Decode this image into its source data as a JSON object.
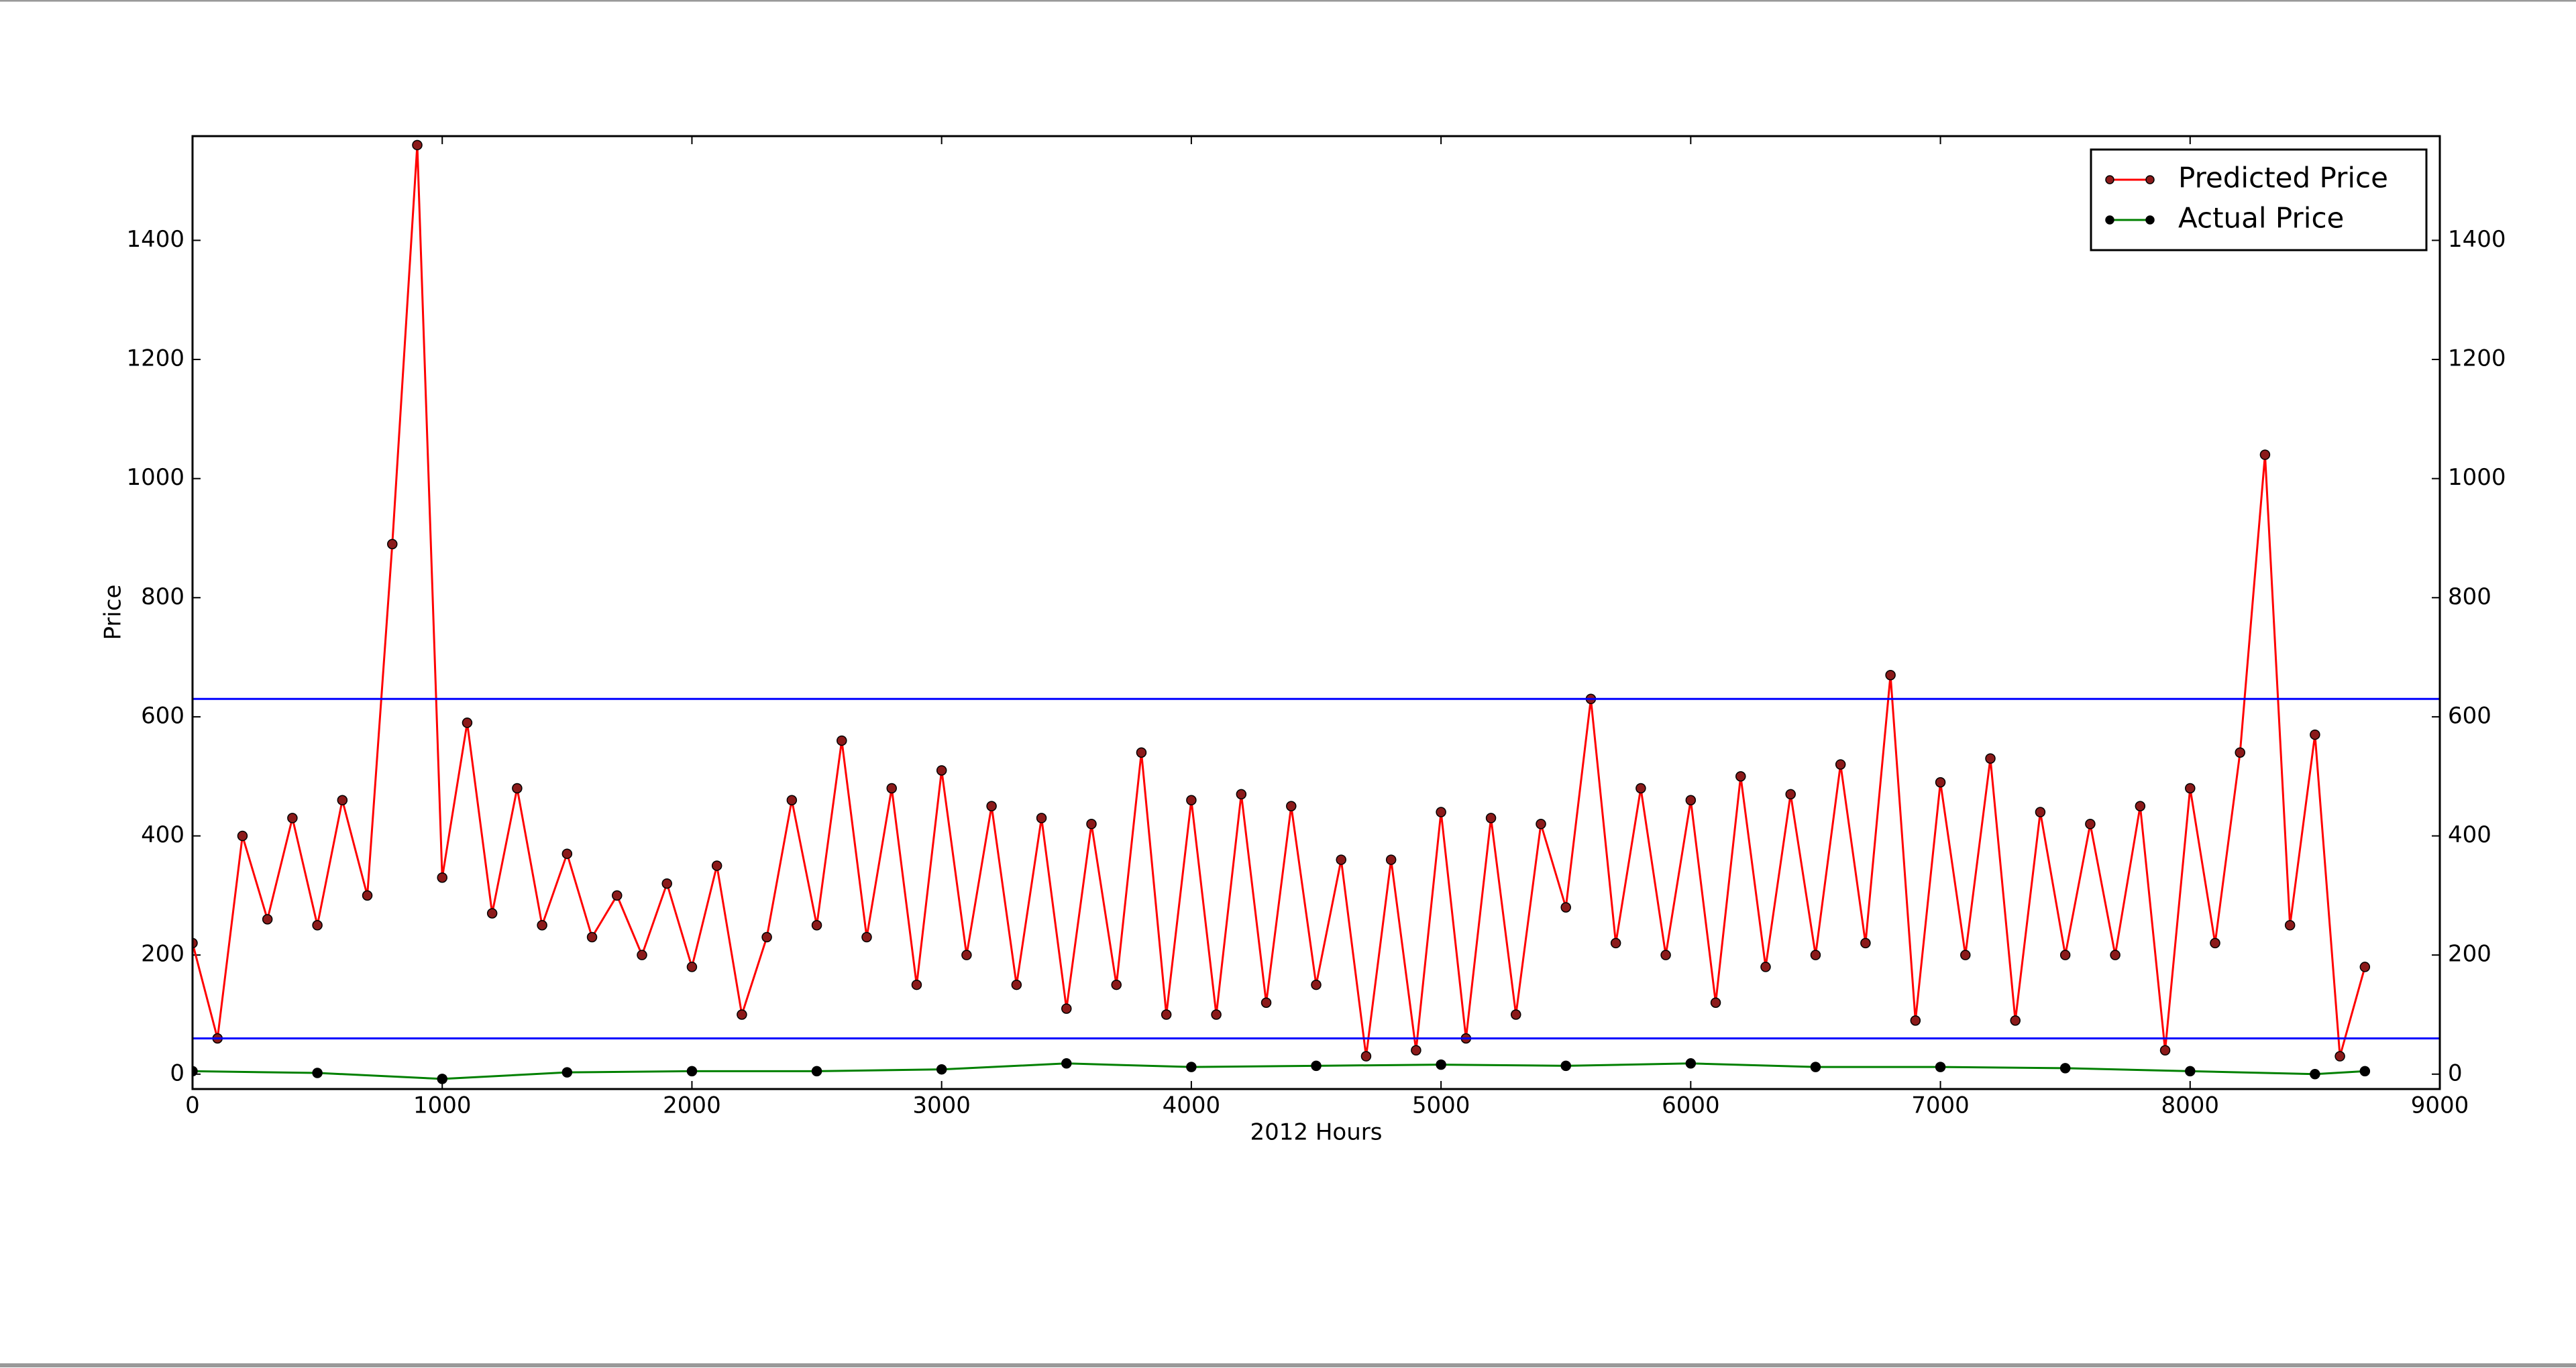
{
  "chart_data": {
    "type": "line",
    "xlabel": "2012 Hours",
    "ylabel": "Price",
    "xlabel_color": "#0000ff",
    "ylabel_color": "#ff0000",
    "xlim": [
      0,
      9000
    ],
    "xticks": [
      0,
      1000,
      2000,
      3000,
      4000,
      5000,
      6000,
      7000,
      8000,
      9000
    ],
    "ylim": [
      -25,
      1575
    ],
    "yticks": [
      0,
      200,
      400,
      600,
      800,
      1000,
      1200,
      1400
    ],
    "y2lim": [
      -25,
      1575
    ],
    "y2ticks": [
      0,
      200,
      400,
      600,
      800,
      1000,
      1200,
      1400
    ],
    "hlines": [
      630,
      60
    ],
    "hline_color": "#0000ff",
    "legend": "upper right",
    "series": [
      {
        "name": "Predicted Price",
        "color": "#ff0000",
        "marker_color": "#8b1a1a",
        "x": [
          0,
          100,
          200,
          300,
          400,
          500,
          600,
          700,
          800,
          900,
          1000,
          1100,
          1200,
          1300,
          1400,
          1500,
          1600,
          1700,
          1800,
          1900,
          2000,
          2100,
          2200,
          2300,
          2400,
          2500,
          2600,
          2700,
          2800,
          2900,
          3000,
          3100,
          3200,
          3300,
          3400,
          3500,
          3600,
          3700,
          3800,
          3900,
          4000,
          4100,
          4200,
          4300,
          4400,
          4500,
          4600,
          4700,
          4800,
          4900,
          5000,
          5100,
          5200,
          5300,
          5400,
          5500,
          5600,
          5700,
          5800,
          5900,
          6000,
          6100,
          6200,
          6300,
          6400,
          6500,
          6600,
          6700,
          6800,
          6900,
          7000,
          7100,
          7200,
          7300,
          7400,
          7500,
          7600,
          7700,
          7800,
          7900,
          8000,
          8100,
          8200,
          8300,
          8400,
          8500,
          8600,
          8700
        ],
        "values": [
          220,
          60,
          400,
          260,
          430,
          250,
          460,
          300,
          890,
          1560,
          330,
          590,
          270,
          480,
          250,
          370,
          230,
          300,
          200,
          320,
          180,
          350,
          100,
          230,
          460,
          250,
          560,
          230,
          480,
          150,
          510,
          200,
          450,
          150,
          430,
          110,
          420,
          150,
          540,
          100,
          460,
          100,
          470,
          120,
          450,
          150,
          360,
          30,
          360,
          40,
          440,
          60,
          430,
          100,
          420,
          280,
          630,
          220,
          480,
          200,
          460,
          120,
          500,
          180,
          470,
          200,
          520,
          220,
          670,
          90,
          490,
          200,
          530,
          90,
          440,
          200,
          420,
          200,
          450,
          40,
          480,
          220,
          540,
          1040,
          250,
          570,
          30,
          180
        ]
      },
      {
        "name": "Actual Price",
        "color": "#008000",
        "marker_color": "#000000",
        "x": [
          0,
          500,
          1000,
          1500,
          2000,
          2500,
          3000,
          3500,
          4000,
          4500,
          5000,
          5500,
          6000,
          6500,
          7000,
          7500,
          8000,
          8500,
          8700
        ],
        "values": [
          5,
          2,
          -8,
          3,
          5,
          5,
          8,
          18,
          12,
          14,
          16,
          14,
          18,
          12,
          12,
          10,
          5,
          0,
          5
        ]
      }
    ]
  }
}
